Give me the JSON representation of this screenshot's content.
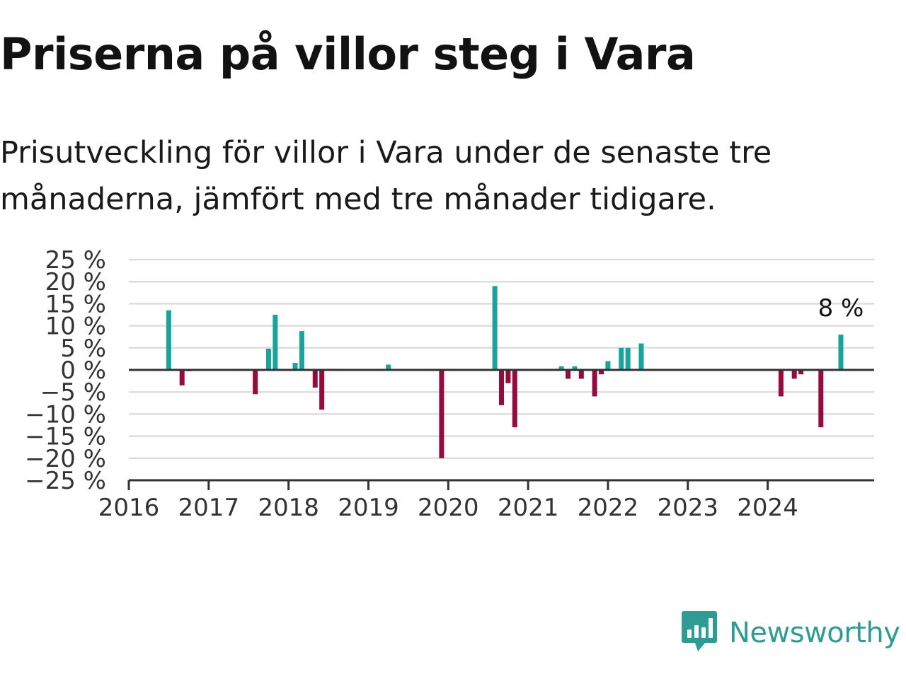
{
  "header": {
    "title": "Priserna på villor steg i Vara",
    "subtitle": "Prisutveckling för villor i Vara under de senaste tre månaderna, jämfört med tre månader tidigare."
  },
  "brand": {
    "name": "Newsworthy",
    "icon": "newsworthy-logo-icon"
  },
  "colors": {
    "positive": "#1aa39c",
    "negative": "#960a3c",
    "grid": "#dddddd",
    "axis": "#333333",
    "brand": "#2e9c95"
  },
  "chart_data": {
    "type": "bar",
    "y_tick_labels": [
      "25 %",
      "20 %",
      "15 %",
      "10 %",
      "5 %",
      "0 %",
      "−5 %",
      "−10 %",
      "−15 %",
      "−20 %",
      "−25 %"
    ],
    "y_ticks": [
      25,
      20,
      15,
      10,
      5,
      0,
      -5,
      -10,
      -15,
      -20,
      -25
    ],
    "ylim": [
      -25,
      25
    ],
    "xlim": [
      "2016-01",
      "2025-05"
    ],
    "x_tick_labels": [
      "2016",
      "2017",
      "2018",
      "2019",
      "2020",
      "2021",
      "2022",
      "2023",
      "2024"
    ],
    "x_ticks": [
      "2016-01",
      "2017-01",
      "2018-01",
      "2019-01",
      "2020-01",
      "2021-01",
      "2022-01",
      "2023-01",
      "2024-01"
    ],
    "grid": true,
    "annotation": {
      "text": "8 %",
      "x": "2024-12",
      "y": 8
    },
    "bars": [
      {
        "x": "2016-07",
        "y": 13.5
      },
      {
        "x": "2016-09",
        "y": -3.5
      },
      {
        "x": "2016-10",
        "y": -0.3
      },
      {
        "x": "2017-08",
        "y": -5.5
      },
      {
        "x": "2017-10",
        "y": 4.8
      },
      {
        "x": "2017-11",
        "y": 12.5
      },
      {
        "x": "2018-02",
        "y": 1.6
      },
      {
        "x": "2018-03",
        "y": 8.8
      },
      {
        "x": "2018-05",
        "y": -4.0
      },
      {
        "x": "2018-06",
        "y": -9.0
      },
      {
        "x": "2019-04",
        "y": 1.2
      },
      {
        "x": "2019-12",
        "y": -20.0
      },
      {
        "x": "2020-08",
        "y": 19.0
      },
      {
        "x": "2020-09",
        "y": -8.0
      },
      {
        "x": "2020-10",
        "y": -3.0
      },
      {
        "x": "2020-11",
        "y": -13.0
      },
      {
        "x": "2021-06",
        "y": 0.8
      },
      {
        "x": "2021-07",
        "y": -2.0
      },
      {
        "x": "2021-08",
        "y": 0.8
      },
      {
        "x": "2021-09",
        "y": -2.0
      },
      {
        "x": "2021-11",
        "y": -6.0
      },
      {
        "x": "2021-12",
        "y": -1.0
      },
      {
        "x": "2022-01",
        "y": 2.0
      },
      {
        "x": "2022-03",
        "y": 5.0
      },
      {
        "x": "2022-04",
        "y": 5.0
      },
      {
        "x": "2022-06",
        "y": 6.0
      },
      {
        "x": "2024-03",
        "y": -6.0
      },
      {
        "x": "2024-05",
        "y": -2.0
      },
      {
        "x": "2024-06",
        "y": -1.0
      },
      {
        "x": "2024-09",
        "y": -13.0
      },
      {
        "x": "2024-12",
        "y": 8.0
      }
    ]
  }
}
